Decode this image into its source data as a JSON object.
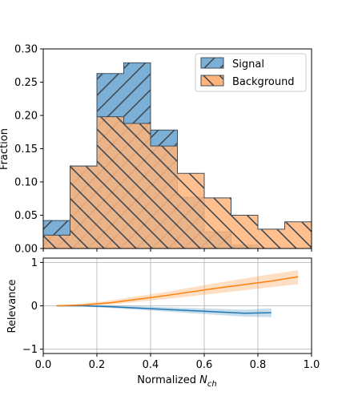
{
  "chart_data": [
    {
      "type": "bar",
      "subtype": "step-histogram",
      "xlabel": "",
      "ylabel": "Fraction",
      "xlim": [
        0.0,
        1.0
      ],
      "ylim": [
        0.0,
        0.3
      ],
      "yticks": [
        "0.00",
        "0.05",
        "0.10",
        "0.15",
        "0.20",
        "0.25",
        "0.30"
      ],
      "grid": false,
      "legend": "top-right",
      "bin_edges": [
        0.0,
        0.1,
        0.2,
        0.3,
        0.4,
        0.5,
        0.6,
        0.7,
        0.8,
        0.9,
        1.0
      ],
      "series": [
        {
          "name": "Signal",
          "color": "#7bafd6",
          "edge_color": "#3d4d5c",
          "hatch": "diagonal-up",
          "values": [
            0.042,
            0.124,
            0.263,
            0.279,
            0.178,
            0.077,
            0.025,
            0.005,
            0.0,
            0.0
          ]
        },
        {
          "name": "Background",
          "color": "#ffb47a",
          "edge_color": "#3d4d5c",
          "hatch": "diagonal-down",
          "values": [
            0.02,
            0.124,
            0.198,
            0.188,
            0.154,
            0.113,
            0.076,
            0.05,
            0.029,
            0.04
          ]
        }
      ]
    },
    {
      "type": "line",
      "xlabel": "Normalized N_ch",
      "ylabel": "Relevance",
      "xlim": [
        0.0,
        1.0
      ],
      "ylim": [
        -1.1,
        1.1
      ],
      "xticks": [
        "0.0",
        "0.2",
        "0.4",
        "0.6",
        "0.8",
        "1.0"
      ],
      "yticks": [
        "−1",
        "0",
        "1"
      ],
      "grid": true,
      "series": [
        {
          "color": "#1f77b4",
          "x": [
            0.05,
            0.15,
            0.25,
            0.35,
            0.45,
            0.55,
            0.65,
            0.75,
            0.85
          ],
          "y": [
            0.0,
            0.0,
            -0.02,
            -0.05,
            -0.08,
            -0.11,
            -0.14,
            -0.17,
            -0.16
          ],
          "band_low": [
            -0.01,
            -0.02,
            -0.05,
            -0.09,
            -0.13,
            -0.17,
            -0.21,
            -0.25,
            -0.26
          ],
          "band_high": [
            0.01,
            0.02,
            0.01,
            -0.01,
            -0.03,
            -0.05,
            -0.07,
            -0.09,
            -0.06
          ]
        },
        {
          "color": "#ff7f0e",
          "x": [
            0.05,
            0.15,
            0.25,
            0.35,
            0.45,
            0.55,
            0.65,
            0.75,
            0.85,
            0.95
          ],
          "y": [
            0.0,
            0.02,
            0.07,
            0.15,
            0.23,
            0.32,
            0.41,
            0.49,
            0.57,
            0.67
          ],
          "band_low": [
            -0.01,
            0.0,
            0.03,
            0.09,
            0.15,
            0.22,
            0.29,
            0.36,
            0.43,
            0.5
          ],
          "band_high": [
            0.01,
            0.05,
            0.12,
            0.22,
            0.31,
            0.42,
            0.53,
            0.63,
            0.73,
            0.82
          ]
        }
      ]
    }
  ],
  "xlabel_display": {
    "main": "Normalized ",
    "var": "N",
    "sub": "ch"
  }
}
